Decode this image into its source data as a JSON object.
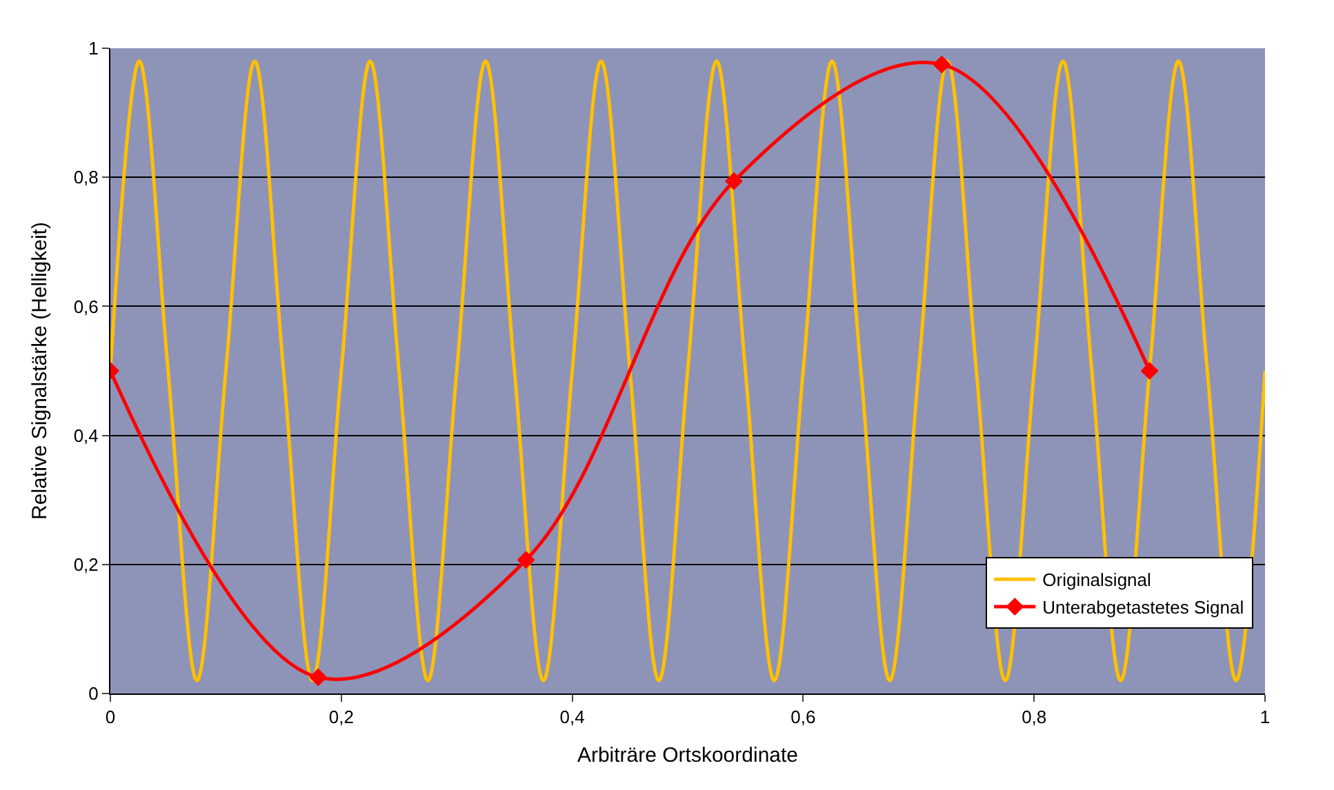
{
  "chart_data": {
    "type": "line",
    "xlabel": "Arbiträre Ortskoordinate",
    "ylabel": "Relative Signalstärke (Helligkeit)",
    "xlim": [
      0,
      1
    ],
    "ylim": [
      0,
      1
    ],
    "xticks": [
      0,
      {
        "value": 0.2,
        "label": "0,2"
      },
      {
        "value": 0.4,
        "label": "0,4"
      },
      {
        "value": 0.6,
        "label": "0,6"
      },
      {
        "value": 0.8,
        "label": "0,8"
      },
      1
    ],
    "yticks": [
      0,
      {
        "value": 0.2,
        "label": "0,2"
      },
      {
        "value": 0.4,
        "label": "0,4"
      },
      {
        "value": 0.6,
        "label": "0,6"
      },
      {
        "value": 0.8,
        "label": "0,8"
      },
      1
    ],
    "grid": "y",
    "legend": "bottom right",
    "series": [
      {
        "name": "Originalsignal",
        "color": "#ffc000",
        "marker": "none",
        "x": [
          0,
          0.025,
          0.05,
          0.075,
          0.1,
          0.125,
          0.15,
          0.175,
          0.2,
          0.225,
          0.25,
          0.275,
          0.3,
          0.325,
          0.35,
          0.375,
          0.4,
          0.425,
          0.45,
          0.475,
          0.5,
          0.525,
          0.55,
          0.575,
          0.6,
          0.625,
          0.65,
          0.675,
          0.7,
          0.725,
          0.75,
          0.775,
          0.8,
          0.825,
          0.85,
          0.875,
          0.9,
          0.925,
          0.95,
          0.975,
          1
        ],
        "values": [
          0.5,
          0.98,
          0.5,
          0.02,
          0.5,
          0.98,
          0.5,
          0.02,
          0.5,
          0.98,
          0.5,
          0.02,
          0.5,
          0.98,
          0.5,
          0.02,
          0.5,
          0.98,
          0.5,
          0.02,
          0.5,
          0.98,
          0.5,
          0.02,
          0.5,
          0.98,
          0.5,
          0.02,
          0.5,
          0.98,
          0.5,
          0.02,
          0.5,
          0.98,
          0.5,
          0.02,
          0.5,
          0.98,
          0.5,
          0.02,
          0.5
        ]
      },
      {
        "name": "Unterabgetastetes Signal",
        "color": "#ff0000",
        "marker": "diamond",
        "x": [
          0,
          0.18,
          0.36,
          0.54,
          0.72,
          0.9
        ],
        "values": [
          0.5,
          0.025,
          0.207,
          0.794,
          0.975,
          0.5
        ]
      }
    ]
  }
}
